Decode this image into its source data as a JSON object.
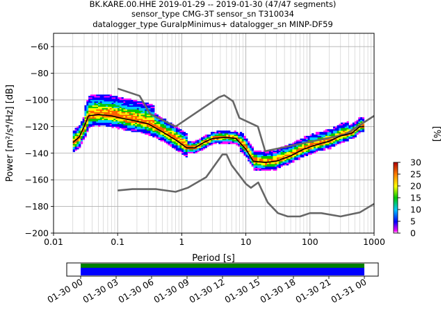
{
  "chart_data": {
    "type": "heatmap",
    "title_lines": [
      "BK.KARE.00.HHE   2019-01-29 -- 2019-01-30  (47/47 segments)",
      "sensor_type CMG-3T sensor_sn T310034",
      "datalogger_type GuralpMinimus+ datalogger_sn MINP-DF59"
    ],
    "xlabel": "Period [s]",
    "ylabel": "Power [m²/s⁴/Hz] [dB]",
    "x_scale": "log",
    "xlim": [
      0.01,
      1000
    ],
    "ylim": [
      -200,
      -50
    ],
    "x_ticks": [
      0.01,
      0.1,
      1,
      10,
      100,
      1000
    ],
    "x_tick_labels": [
      "0.01",
      "0.1",
      "1",
      "10",
      "100",
      "1000"
    ],
    "y_ticks": [
      -200,
      -180,
      -160,
      -140,
      -120,
      -100,
      -80,
      -60
    ],
    "y_tick_labels": [
      "−200",
      "−180",
      "−160",
      "−140",
      "−120",
      "−100",
      "−80",
      "−60"
    ],
    "grid": true,
    "colorbar": {
      "label": "[%]",
      "min": 0,
      "max": 30,
      "ticks": [
        0,
        5,
        10,
        15,
        20,
        25,
        30
      ],
      "tick_labels": [
        "0",
        "5",
        "10",
        "15",
        "20",
        "25",
        "30"
      ]
    },
    "noise_models": [
      {
        "name": "high",
        "points": [
          [
            0.1,
            -91.5
          ],
          [
            0.22,
            -97
          ],
          [
            0.32,
            -110.5
          ],
          [
            0.8,
            -120
          ],
          [
            3.8,
            -98
          ],
          [
            4.6,
            -96.5
          ],
          [
            6.3,
            -101
          ],
          [
            7.9,
            -113.5
          ],
          [
            15.4,
            -120
          ],
          [
            20,
            -138.5
          ],
          [
            354.8,
            -126
          ],
          [
            1000,
            -112
          ]
        ]
      },
      {
        "name": "low",
        "points": [
          [
            0.1,
            -168
          ],
          [
            0.17,
            -167
          ],
          [
            0.4,
            -167
          ],
          [
            0.8,
            -169
          ],
          [
            1.24,
            -166
          ],
          [
            2.4,
            -158
          ],
          [
            4.3,
            -141
          ],
          [
            5,
            -141
          ],
          [
            6,
            -149
          ],
          [
            10,
            -163
          ],
          [
            12,
            -166
          ],
          [
            15.6,
            -162
          ],
          [
            21.9,
            -177
          ],
          [
            31.6,
            -185
          ],
          [
            45,
            -187.5
          ],
          [
            70,
            -187.5
          ],
          [
            100,
            -185
          ],
          [
            150,
            -185
          ],
          [
            300,
            -187.5
          ],
          [
            600,
            -184.5
          ],
          [
            1000,
            -178
          ]
        ]
      }
    ],
    "mean_curve": [
      [
        0.02,
        -132
      ],
      [
        0.025,
        -128
      ],
      [
        0.03,
        -120
      ],
      [
        0.035,
        -112
      ],
      [
        0.05,
        -111
      ],
      [
        0.08,
        -112
      ],
      [
        0.12,
        -114
      ],
      [
        0.2,
        -116
      ],
      [
        0.3,
        -118
      ],
      [
        0.5,
        -124
      ],
      [
        0.8,
        -130
      ],
      [
        1.2,
        -136
      ],
      [
        1.6,
        -136
      ],
      [
        2.2,
        -132
      ],
      [
        3,
        -129
      ],
      [
        5,
        -128
      ],
      [
        7,
        -129
      ],
      [
        10,
        -137
      ],
      [
        13,
        -146
      ],
      [
        20,
        -147
      ],
      [
        30,
        -146
      ],
      [
        50,
        -142
      ],
      [
        80,
        -137
      ],
      [
        120,
        -134
      ],
      [
        200,
        -131
      ],
      [
        300,
        -127
      ],
      [
        450,
        -125
      ],
      [
        600,
        -120
      ],
      [
        700,
        -120
      ]
    ],
    "timeline": {
      "tick_labels": [
        "01-30 00",
        "01-30 03",
        "01-30 06",
        "01-30 09",
        "01-30 12",
        "01-30 15",
        "01-30 18",
        "01-30 21",
        "01-31 00"
      ],
      "colors": [
        "#008000",
        "#0000ff"
      ]
    }
  }
}
